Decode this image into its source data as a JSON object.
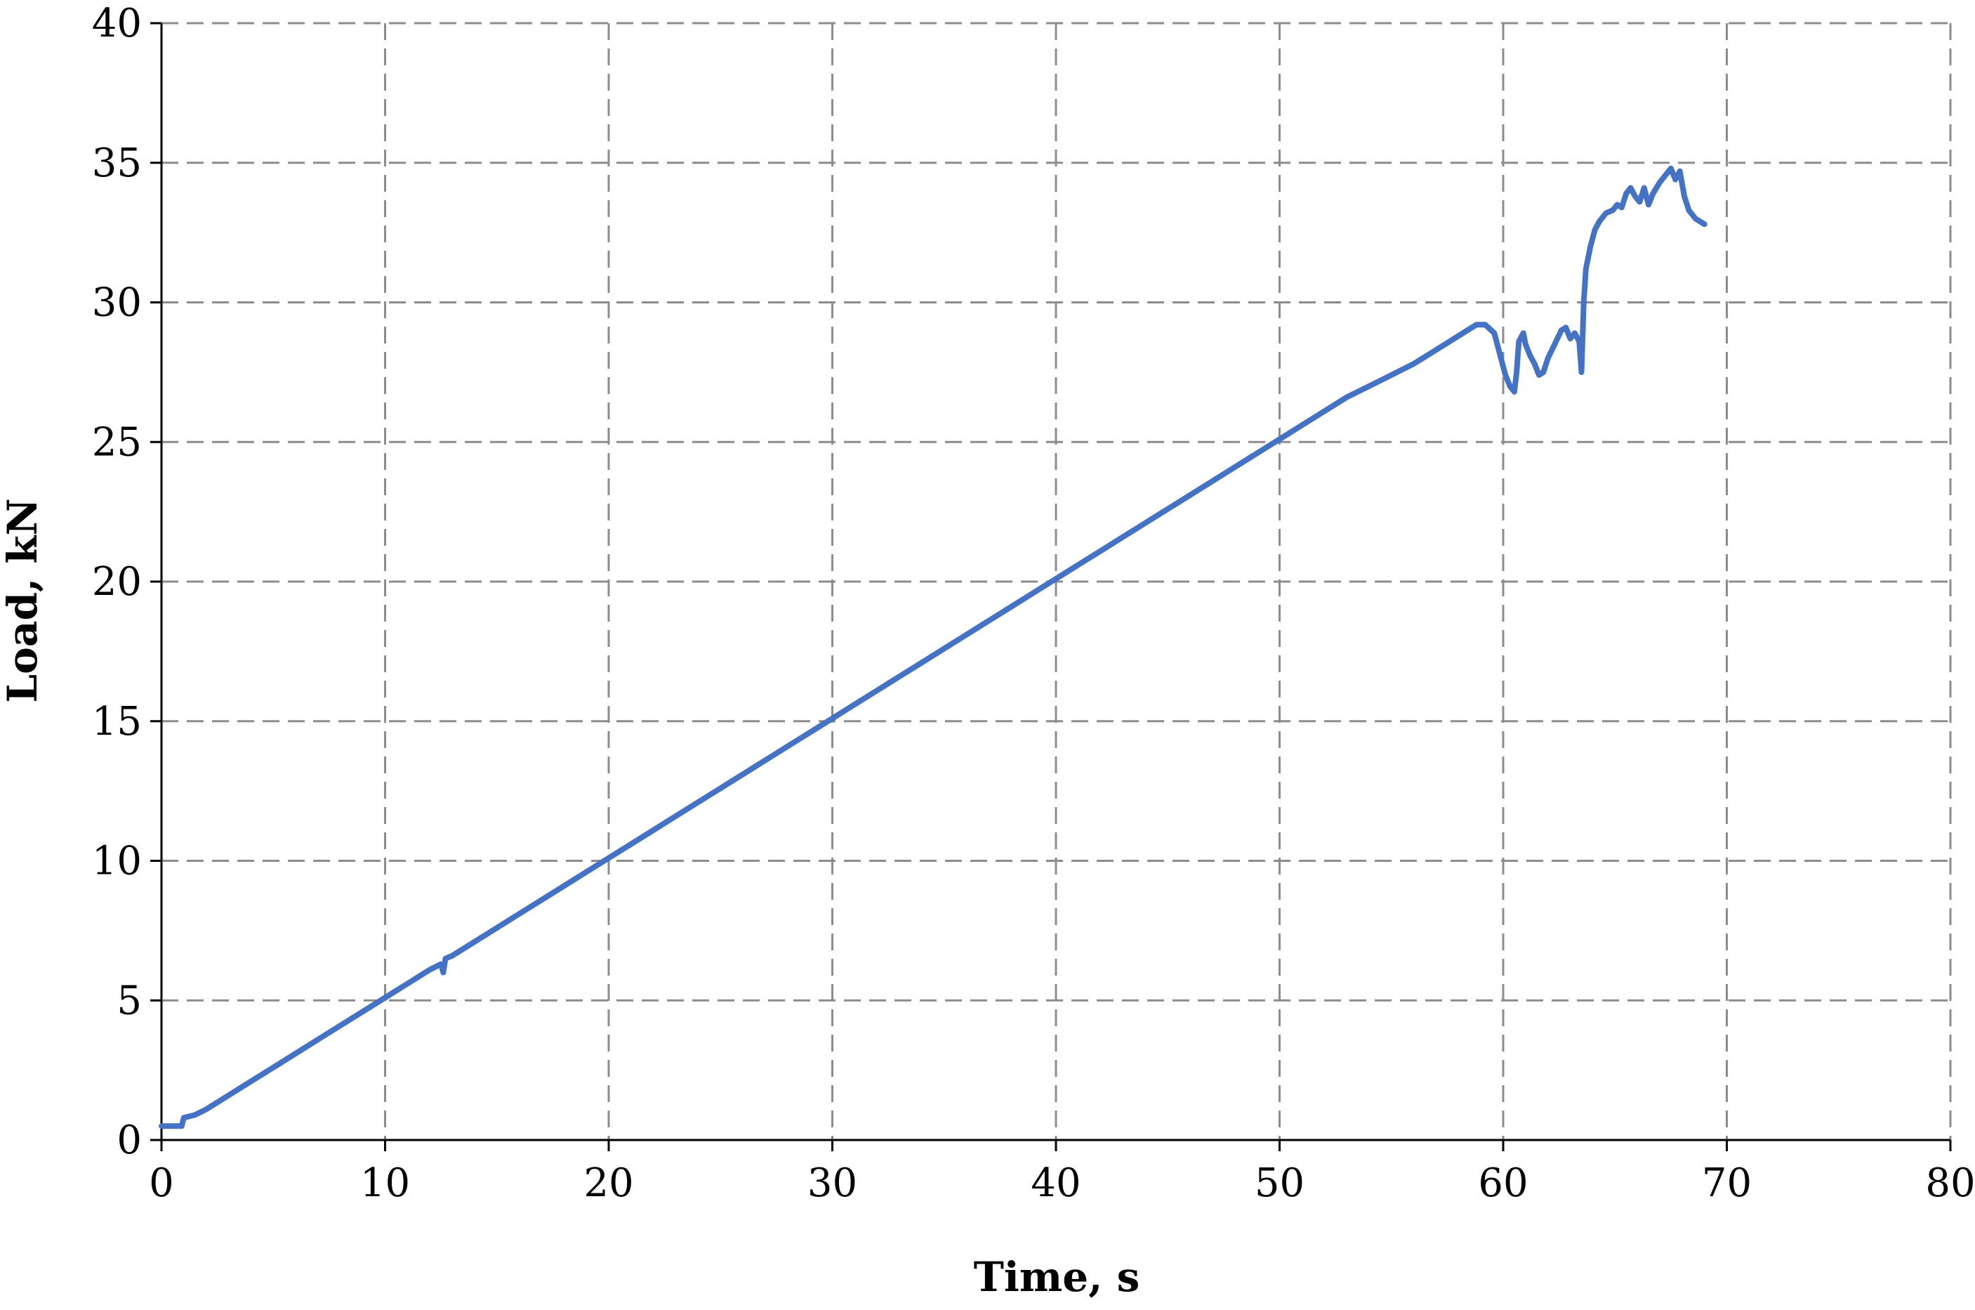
{
  "chart_data": {
    "type": "line",
    "title": "",
    "xlabel": "Time, s",
    "ylabel": "Load, kN",
    "xlim": [
      0,
      80
    ],
    "ylim": [
      0,
      40
    ],
    "x_ticks": [
      "0",
      "10",
      "20",
      "30",
      "40",
      "50",
      "60",
      "70",
      "80"
    ],
    "y_ticks": [
      "0",
      "5",
      "10",
      "15",
      "20",
      "25",
      "30",
      "35",
      "40"
    ],
    "grid": true,
    "grid_style": "dashed",
    "legend": "none",
    "series": [
      {
        "color": "#4472C4",
        "points": [
          [
            0,
            0.5
          ],
          [
            0.9,
            0.5
          ],
          [
            1.0,
            0.8
          ],
          [
            1.5,
            0.9
          ],
          [
            2,
            1.1
          ],
          [
            3,
            1.6
          ],
          [
            4,
            2.1
          ],
          [
            5,
            2.6
          ],
          [
            6,
            3.1
          ],
          [
            7,
            3.6
          ],
          [
            8,
            4.1
          ],
          [
            9,
            4.6
          ],
          [
            10,
            5.1
          ],
          [
            11,
            5.6
          ],
          [
            12,
            6.1
          ],
          [
            12.5,
            6.3
          ],
          [
            12.6,
            6.0
          ],
          [
            12.7,
            6.5
          ],
          [
            13,
            6.6
          ],
          [
            14,
            7.1
          ],
          [
            15,
            7.6
          ],
          [
            16,
            8.1
          ],
          [
            17,
            8.6
          ],
          [
            18,
            9.1
          ],
          [
            19,
            9.6
          ],
          [
            20,
            10.1
          ],
          [
            21,
            10.6
          ],
          [
            22,
            11.1
          ],
          [
            23,
            11.6
          ],
          [
            24,
            12.1
          ],
          [
            25,
            12.6
          ],
          [
            26,
            13.1
          ],
          [
            27,
            13.6
          ],
          [
            28,
            14.1
          ],
          [
            29,
            14.6
          ],
          [
            30,
            15.1
          ],
          [
            31,
            15.6
          ],
          [
            32,
            16.1
          ],
          [
            33,
            16.6
          ],
          [
            34,
            17.1
          ],
          [
            35,
            17.6
          ],
          [
            36,
            18.1
          ],
          [
            37,
            18.6
          ],
          [
            38,
            19.1
          ],
          [
            39,
            19.6
          ],
          [
            40,
            20.1
          ],
          [
            41,
            20.6
          ],
          [
            42,
            21.1
          ],
          [
            43,
            21.6
          ],
          [
            44,
            22.1
          ],
          [
            45,
            22.6
          ],
          [
            46,
            23.1
          ],
          [
            47,
            23.6
          ],
          [
            48,
            24.1
          ],
          [
            49,
            24.6
          ],
          [
            50,
            25.1
          ],
          [
            51,
            25.6
          ],
          [
            52,
            26.1
          ],
          [
            53,
            26.6
          ],
          [
            54,
            27.0
          ],
          [
            55,
            27.4
          ],
          [
            56,
            27.8
          ],
          [
            57,
            28.3
          ],
          [
            58,
            28.8
          ],
          [
            58.8,
            29.2
          ],
          [
            59.2,
            29.2
          ],
          [
            59.6,
            28.9
          ],
          [
            59.9,
            28.0
          ],
          [
            60.1,
            27.4
          ],
          [
            60.3,
            27.0
          ],
          [
            60.5,
            26.8
          ],
          [
            60.6,
            27.5
          ],
          [
            60.7,
            28.6
          ],
          [
            60.9,
            28.9
          ],
          [
            61.0,
            28.5
          ],
          [
            61.2,
            28.1
          ],
          [
            61.4,
            27.8
          ],
          [
            61.6,
            27.4
          ],
          [
            61.8,
            27.5
          ],
          [
            62.0,
            28.0
          ],
          [
            62.3,
            28.5
          ],
          [
            62.6,
            29.0
          ],
          [
            62.8,
            29.1
          ],
          [
            63.0,
            28.7
          ],
          [
            63.2,
            28.9
          ],
          [
            63.4,
            28.6
          ],
          [
            63.5,
            27.5
          ],
          [
            63.6,
            30.0
          ],
          [
            63.7,
            31.2
          ],
          [
            63.9,
            32.0
          ],
          [
            64.1,
            32.6
          ],
          [
            64.3,
            32.9
          ],
          [
            64.6,
            33.2
          ],
          [
            64.9,
            33.3
          ],
          [
            65.1,
            33.5
          ],
          [
            65.3,
            33.4
          ],
          [
            65.5,
            33.9
          ],
          [
            65.7,
            34.1
          ],
          [
            65.9,
            33.8
          ],
          [
            66.1,
            33.6
          ],
          [
            66.3,
            34.1
          ],
          [
            66.5,
            33.5
          ],
          [
            66.7,
            33.9
          ],
          [
            67.0,
            34.3
          ],
          [
            67.3,
            34.6
          ],
          [
            67.5,
            34.8
          ],
          [
            67.7,
            34.4
          ],
          [
            67.9,
            34.7
          ],
          [
            68.1,
            33.8
          ],
          [
            68.3,
            33.3
          ],
          [
            68.6,
            33.0
          ],
          [
            69.0,
            32.8
          ]
        ]
      }
    ]
  }
}
